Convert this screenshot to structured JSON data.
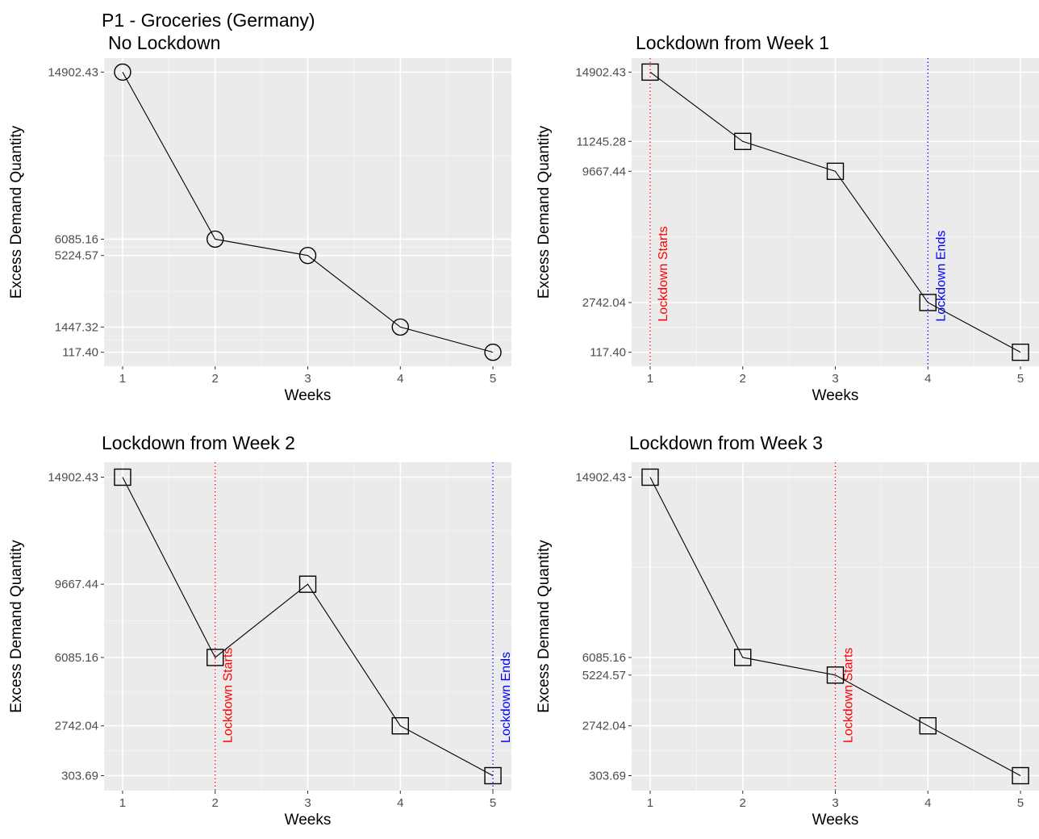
{
  "figure_title": "P1 - Groceries (Germany)",
  "chart_data": [
    {
      "type": "line",
      "title": "No Lockdown",
      "xlabel": "Weeks",
      "ylabel": "Excess Demand Quantity",
      "x": [
        1,
        2,
        3,
        4,
        5
      ],
      "values": [
        14902.43,
        6085.16,
        5224.57,
        1447.32,
        117.4
      ],
      "x_ticks": [
        "1",
        "2",
        "3",
        "4",
        "5"
      ],
      "y_ticks": [
        "14902.43",
        "6085.16",
        "5224.57",
        "1447.32",
        "117.40"
      ],
      "marker": "circle",
      "grid": true,
      "vlines": []
    },
    {
      "type": "line",
      "title": "Lockdown from Week 1",
      "xlabel": "Weeks",
      "ylabel": "Excess Demand Quantity",
      "x": [
        1,
        2,
        3,
        4,
        5
      ],
      "values": [
        14902.43,
        11245.28,
        9667.44,
        2742.04,
        117.4
      ],
      "x_ticks": [
        "1",
        "2",
        "3",
        "4",
        "5"
      ],
      "y_ticks": [
        "14902.43",
        "11245.28",
        "9667.44",
        "2742.04",
        "117.40"
      ],
      "marker": "square",
      "grid": true,
      "vlines": [
        {
          "x": 1,
          "label": "Lockdown Starts",
          "color": "#ff0000"
        },
        {
          "x": 4,
          "label": "Lockdown Ends",
          "color": "#0000ff"
        }
      ]
    },
    {
      "type": "line",
      "title": "Lockdown from Week 2",
      "xlabel": "Weeks",
      "ylabel": "Excess Demand Quantity",
      "x": [
        1,
        2,
        3,
        4,
        5
      ],
      "values": [
        14902.43,
        6085.16,
        9667.44,
        2742.04,
        303.69
      ],
      "x_ticks": [
        "1",
        "2",
        "3",
        "4",
        "5"
      ],
      "y_ticks": [
        "14902.43",
        "9667.44",
        "6085.16",
        "2742.04",
        "303.69"
      ],
      "marker": "square",
      "grid": true,
      "vlines": [
        {
          "x": 2,
          "label": "Lockdown Starts",
          "color": "#ff0000"
        },
        {
          "x": 5,
          "label": "Lockdown Ends",
          "color": "#0000ff"
        }
      ]
    },
    {
      "type": "line",
      "title": "Lockdown from Week 3",
      "xlabel": "Weeks",
      "ylabel": "Excess Demand Quantity",
      "x": [
        1,
        2,
        3,
        4,
        5
      ],
      "values": [
        14902.43,
        6085.16,
        5224.57,
        2742.04,
        303.69
      ],
      "x_ticks": [
        "1",
        "2",
        "3",
        "4",
        "5"
      ],
      "y_ticks": [
        "14902.43",
        "6085.16",
        "5224.57",
        "2742.04",
        "303.69"
      ],
      "marker": "square",
      "grid": true,
      "vlines": [
        {
          "x": 3,
          "label": "Lockdown Starts",
          "color": "#ff0000"
        }
      ]
    }
  ]
}
